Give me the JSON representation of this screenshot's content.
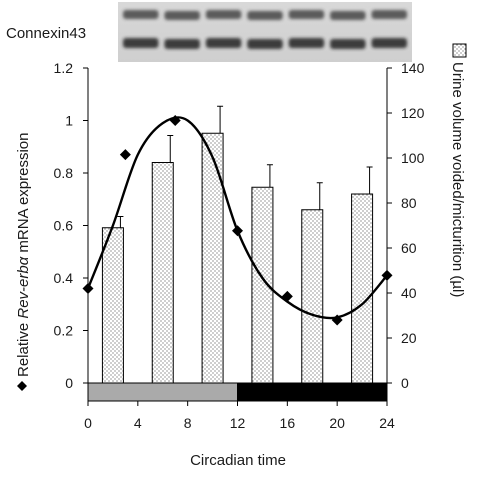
{
  "blot": {
    "label": "Connexin43",
    "lanes": 7
  },
  "chart_data": {
    "type": "bar+line",
    "xlabel": "Circadian time",
    "ylabel_left_pre": "Relative ",
    "ylabel_left_italic": "Rev-erbα",
    "ylabel_left_post": " mRNA expression",
    "ylabel_right": "Urine volume voided/micturition (µl)",
    "x_ticks": [
      0,
      4,
      8,
      12,
      16,
      20,
      24
    ],
    "xlim": [
      0,
      24
    ],
    "left_axis": {
      "ylim": [
        0,
        1.2
      ],
      "ticks": [
        "0",
        "0.2",
        "0.4",
        "0.6",
        "0.8",
        "1",
        "1.2"
      ]
    },
    "right_axis": {
      "ylim": [
        0,
        140
      ],
      "ticks": [
        "0",
        "20",
        "40",
        "60",
        "80",
        "100",
        "120",
        "140"
      ]
    },
    "bars": {
      "axis": "right",
      "x": [
        2,
        6,
        10,
        14,
        18,
        22
      ],
      "values": [
        69,
        98,
        111,
        87,
        77,
        84
      ],
      "errors": [
        5,
        12,
        12,
        10,
        12,
        12
      ],
      "fill": "dotted"
    },
    "points": {
      "axis": "left",
      "x": [
        0,
        3,
        7,
        12,
        16,
        20,
        24
      ],
      "values": [
        0.36,
        0.87,
        1.0,
        0.58,
        0.33,
        0.24,
        0.41
      ],
      "marker": "diamond"
    },
    "fit_curve": {
      "axis": "left",
      "x": [
        0,
        2,
        4,
        6,
        8,
        10,
        12,
        14,
        16,
        18,
        20,
        22,
        24
      ],
      "values": [
        0.36,
        0.6,
        0.87,
        0.99,
        1.0,
        0.86,
        0.58,
        0.4,
        0.31,
        0.26,
        0.25,
        0.3,
        0.41
      ]
    },
    "light_dark_bar": [
      {
        "from": 0,
        "to": 12,
        "color": "#aaaaaa"
      },
      {
        "from": 12,
        "to": 24,
        "color": "#000000"
      }
    ],
    "grid": false,
    "colors": {
      "marker": "#000000",
      "bar_fill": "#ffffff",
      "bar_dots": "#555555"
    }
  }
}
